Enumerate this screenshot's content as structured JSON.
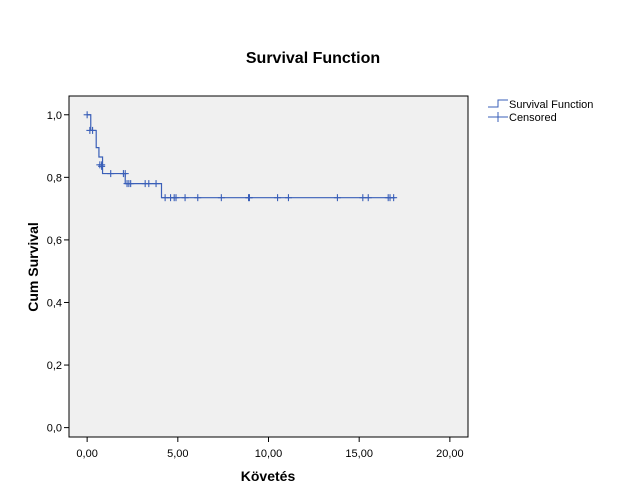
{
  "chart_data": {
    "type": "line",
    "title": "Survival Function",
    "xlabel": "Követés",
    "ylabel": "Cum Survival",
    "xlim": [
      -1,
      21
    ],
    "ylim": [
      -0.03,
      1.06
    ],
    "x_ticks": [
      0,
      5,
      10,
      15,
      20
    ],
    "x_tick_labels": [
      "0,00",
      "5,00",
      "10,00",
      "15,00",
      "20,00"
    ],
    "y_ticks": [
      0,
      0.2,
      0.4,
      0.6,
      0.8,
      1.0
    ],
    "y_tick_labels": [
      "0,0",
      "0,2",
      "0,4",
      "0,6",
      "0,8",
      "1,0"
    ],
    "grid": false,
    "legend_position": "top-right",
    "colors": {
      "plot_background": "#f0f0f0",
      "series": "#3a5fb8"
    },
    "series": [
      {
        "name": "Survival Function",
        "kind": "step",
        "x": [
          0.0,
          0.2,
          0.5,
          0.65,
          0.85,
          2.1,
          4.1,
          17.0
        ],
        "y": [
          1.0,
          0.95,
          0.895,
          0.865,
          0.812,
          0.78,
          0.735,
          0.735
        ]
      },
      {
        "name": "Censored",
        "kind": "markers",
        "x": [
          0.0,
          0.15,
          0.3,
          0.7,
          0.8,
          0.8,
          1.3,
          2.0,
          2.1,
          2.2,
          2.3,
          2.4,
          3.2,
          3.4,
          3.8,
          4.3,
          4.6,
          4.8,
          4.9,
          5.4,
          6.1,
          7.4,
          8.9,
          8.95,
          10.5,
          11.1,
          13.8,
          15.2,
          15.5,
          16.6,
          16.7,
          16.9
        ],
        "y": [
          1.0,
          0.95,
          0.95,
          0.84,
          0.84,
          0.835,
          0.812,
          0.812,
          0.812,
          0.78,
          0.78,
          0.78,
          0.78,
          0.78,
          0.78,
          0.735,
          0.735,
          0.735,
          0.735,
          0.735,
          0.735,
          0.735,
          0.735,
          0.735,
          0.735,
          0.735,
          0.735,
          0.735,
          0.735,
          0.735,
          0.735,
          0.735
        ]
      }
    ]
  }
}
